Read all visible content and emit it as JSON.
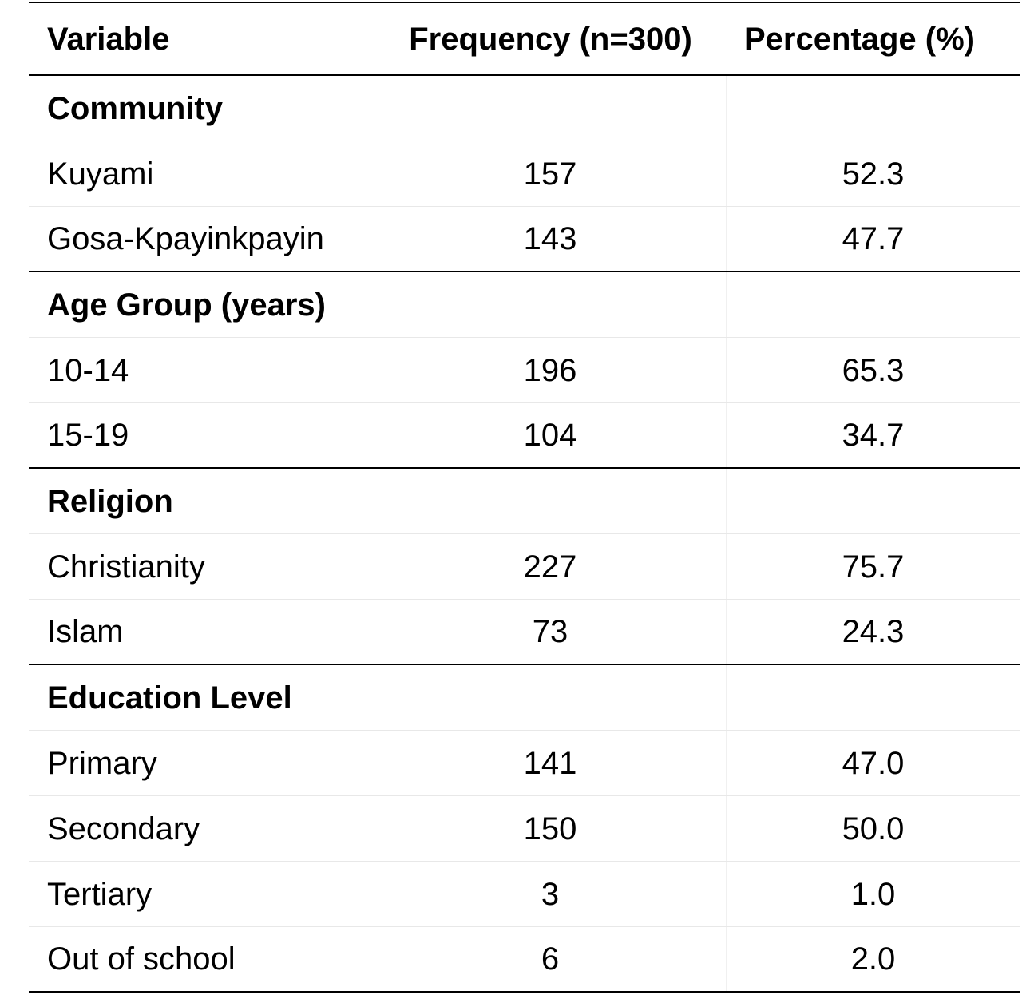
{
  "table": {
    "headers": [
      "Variable",
      "Frequency (n=300)",
      "Percentage (%)"
    ],
    "sections": [
      {
        "title": "Community",
        "rows": [
          {
            "variable": "Kuyami",
            "frequency": "157",
            "percentage": "52.3"
          },
          {
            "variable": "Gosa-Kpayinkpayin",
            "frequency": "143",
            "percentage": "47.7"
          }
        ]
      },
      {
        "title": "Age Group (years)",
        "rows": [
          {
            "variable": "10-14",
            "frequency": "196",
            "percentage": "65.3"
          },
          {
            "variable": "15-19",
            "frequency": "104",
            "percentage": "34.7"
          }
        ]
      },
      {
        "title": "Religion",
        "rows": [
          {
            "variable": "Christianity",
            "frequency": "227",
            "percentage": "75.7"
          },
          {
            "variable": "Islam",
            "frequency": "73",
            "percentage": "24.3"
          }
        ]
      },
      {
        "title": "Education Level",
        "rows": [
          {
            "variable": "Primary",
            "frequency": "141",
            "percentage": "47.0"
          },
          {
            "variable": "Secondary",
            "frequency": "150",
            "percentage": "50.0"
          },
          {
            "variable": "Tertiary",
            "frequency": "3",
            "percentage": "1.0"
          },
          {
            "variable": "Out of school",
            "frequency": "6",
            "percentage": "2.0"
          }
        ]
      }
    ]
  }
}
